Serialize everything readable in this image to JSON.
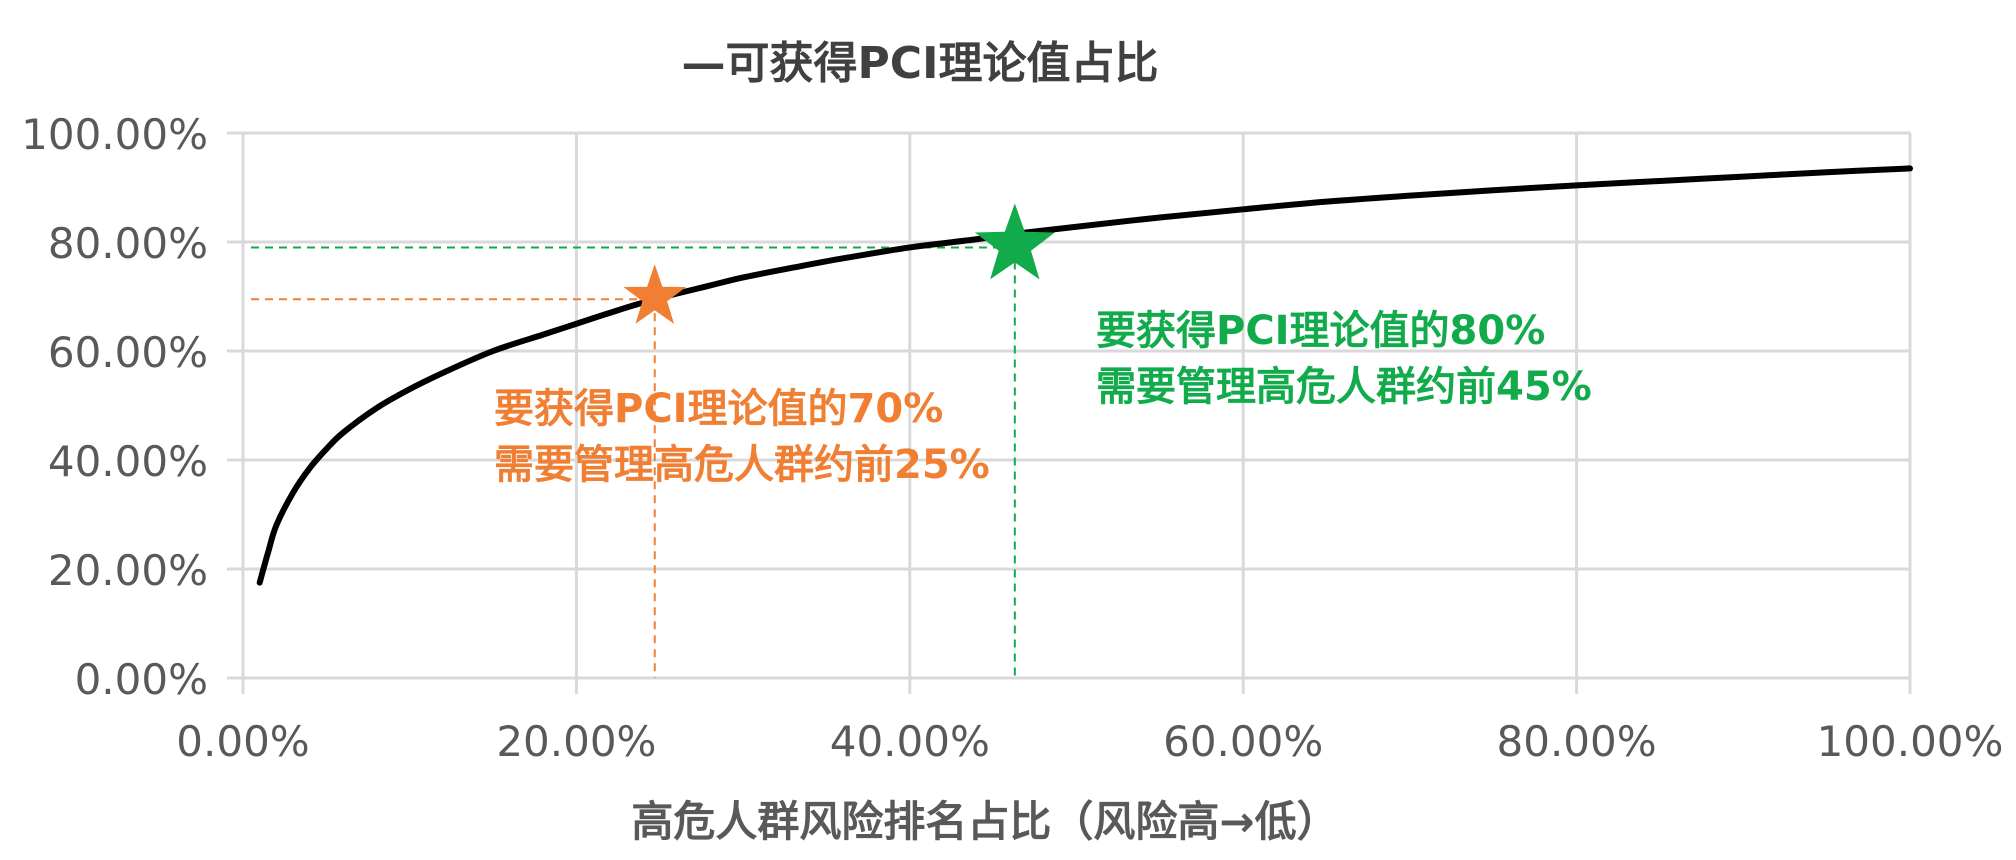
{
  "chart_data": {
    "type": "line",
    "title": "—可获得PCI理论值占比",
    "xlabel": "高危人群风险排名占比（风险高→低）",
    "ylabel": "",
    "xlim": [
      0,
      100
    ],
    "ylim": [
      0,
      100
    ],
    "x_ticks": [
      "0.00%",
      "20.00%",
      "40.00%",
      "60.00%",
      "80.00%",
      "100.00%"
    ],
    "y_ticks": [
      "0.00%",
      "20.00%",
      "40.00%",
      "60.00%",
      "80.00%",
      "100.00%"
    ],
    "grid": true,
    "legend": "none",
    "series": [
      {
        "color": "#000000",
        "x": [
          1,
          1.5,
          2,
          3,
          4,
          5,
          6,
          8,
          10,
          12,
          15,
          18,
          20,
          22,
          24.7,
          28,
          30,
          33,
          36,
          40,
          44,
          46.3,
          50,
          55,
          60,
          65,
          70,
          75,
          80,
          85,
          90,
          95,
          100
        ],
        "y": [
          17.5,
          23,
          28,
          34,
          38.5,
          42,
          45,
          49.5,
          53,
          56,
          60,
          63,
          65,
          67,
          69.5,
          72,
          73.5,
          75.3,
          77,
          79,
          80.5,
          81.5,
          82.8,
          84.5,
          86,
          87.4,
          88.5,
          89.5,
          90.4,
          91.2,
          92,
          92.8,
          93.5
        ]
      }
    ],
    "annotations": [
      {
        "color": "#f07f34",
        "x": 24.7,
        "y": 69.5,
        "label_lines": [
          "要获得PCI理论值的70%",
          "需要管理高危人群约前25%"
        ]
      },
      {
        "color": "#12ab4c",
        "x": 46.3,
        "y": 79,
        "label_lines": [
          "要获得PCI理论值的80%",
          "需要管理高危人群约前45%"
        ]
      }
    ]
  }
}
